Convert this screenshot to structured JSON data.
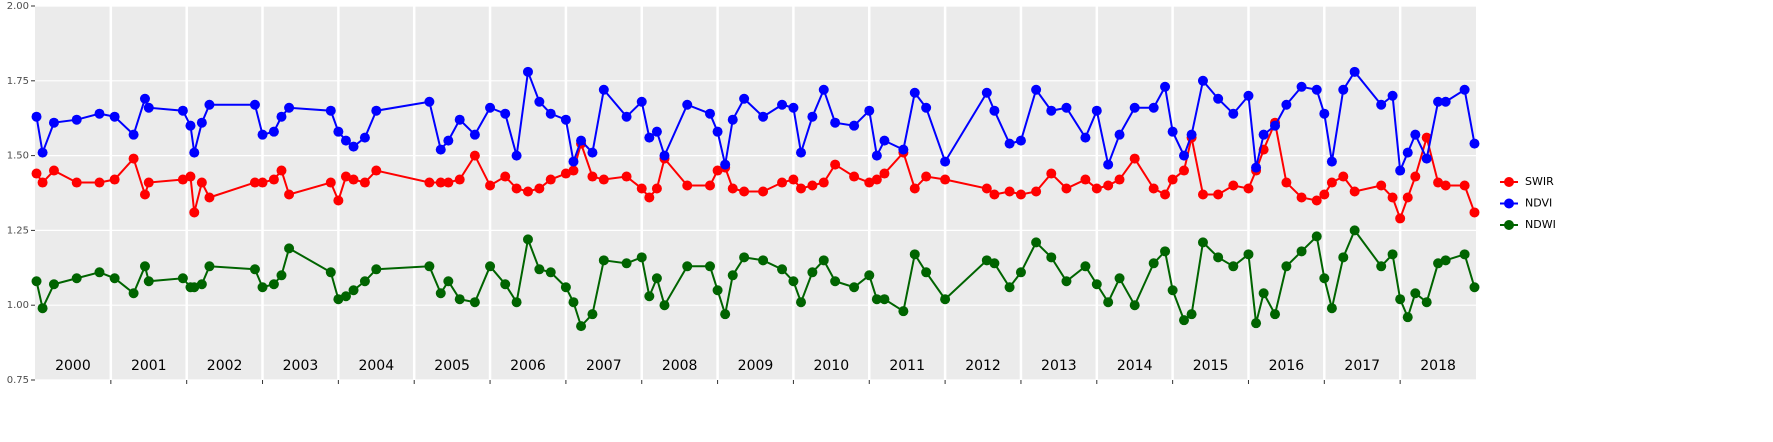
{
  "chart_data": {
    "type": "line",
    "categories": [
      "2000",
      "2001",
      "2002",
      "2003",
      "2004",
      "2005",
      "2006",
      "2007",
      "2008",
      "2009",
      "2010",
      "2011",
      "2012",
      "2013",
      "2014",
      "2015",
      "2016",
      "2017",
      "2018"
    ],
    "x": [
      2000.02,
      2000.1,
      2000.25,
      2000.55,
      2000.85,
      2001.05,
      2001.3,
      2001.45,
      2001.5,
      2001.95,
      2002.05,
      2002.1,
      2002.2,
      2002.3,
      2002.9,
      2003.0,
      2003.15,
      2003.25,
      2003.35,
      2003.9,
      2004.0,
      2004.1,
      2004.2,
      2004.35,
      2004.5,
      2005.2,
      2005.35,
      2005.45,
      2005.6,
      2005.8,
      2006.0,
      2006.2,
      2006.35,
      2006.5,
      2006.65,
      2006.8,
      2007.0,
      2007.1,
      2007.2,
      2007.35,
      2007.5,
      2007.8,
      2008.0,
      2008.1,
      2008.2,
      2008.3,
      2008.6,
      2008.9,
      2009.0,
      2009.1,
      2009.2,
      2009.35,
      2009.6,
      2009.85,
      2010.0,
      2010.1,
      2010.25,
      2010.4,
      2010.55,
      2010.8,
      2011.0,
      2011.1,
      2011.2,
      2011.45,
      2011.6,
      2011.75,
      2012.0,
      2012.55,
      2012.65,
      2012.85,
      2013.0,
      2013.2,
      2013.4,
      2013.6,
      2013.85,
      2014.0,
      2014.15,
      2014.3,
      2014.5,
      2014.75,
      2014.9,
      2015.0,
      2015.15,
      2015.25,
      2015.4,
      2015.6,
      2015.8,
      2016.0,
      2016.1,
      2016.2,
      2016.35,
      2016.5,
      2016.7,
      2016.9,
      2017.0,
      2017.1,
      2017.25,
      2017.4,
      2017.75,
      2017.9,
      2018.0,
      2018.1,
      2018.2,
      2018.35,
      2018.5,
      2018.6,
      2018.85,
      2018.98
    ],
    "series": [
      {
        "name": "SWIR",
        "color": "#ff0000",
        "values": [
          1.44,
          1.41,
          1.45,
          1.41,
          1.41,
          1.42,
          1.49,
          1.37,
          1.41,
          1.42,
          1.43,
          1.31,
          1.41,
          1.36,
          1.41,
          1.41,
          1.42,
          1.45,
          1.37,
          1.41,
          1.35,
          1.43,
          1.42,
          1.41,
          1.45,
          1.41,
          1.41,
          1.41,
          1.42,
          1.5,
          1.4,
          1.43,
          1.39,
          1.38,
          1.39,
          1.42,
          1.44,
          1.45,
          1.54,
          1.43,
          1.42,
          1.43,
          1.39,
          1.36,
          1.39,
          1.49,
          1.4,
          1.4,
          1.45,
          1.46,
          1.39,
          1.38,
          1.38,
          1.41,
          1.42,
          1.39,
          1.4,
          1.41,
          1.47,
          1.43,
          1.41,
          1.42,
          1.44,
          1.51,
          1.39,
          1.43,
          1.42,
          1.39,
          1.37,
          1.38,
          1.37,
          1.38,
          1.44,
          1.39,
          1.42,
          1.39,
          1.4,
          1.42,
          1.49,
          1.39,
          1.37,
          1.42,
          1.45,
          1.56,
          1.37,
          1.37,
          1.4,
          1.39,
          1.45,
          1.52,
          1.61,
          1.41,
          1.36,
          1.35,
          1.37,
          1.41,
          1.43,
          1.38,
          1.4,
          1.36,
          1.29,
          1.36,
          1.43,
          1.56,
          1.41,
          1.4,
          1.4,
          1.31
        ]
      },
      {
        "name": "NDVI",
        "color": "#0000ff",
        "values": [
          1.63,
          1.51,
          1.61,
          1.62,
          1.64,
          1.63,
          1.57,
          1.69,
          1.66,
          1.65,
          1.6,
          1.51,
          1.61,
          1.67,
          1.67,
          1.57,
          1.58,
          1.63,
          1.66,
          1.65,
          1.58,
          1.55,
          1.53,
          1.56,
          1.65,
          1.68,
          1.52,
          1.55,
          1.62,
          1.57,
          1.66,
          1.64,
          1.5,
          1.78,
          1.68,
          1.64,
          1.62,
          1.48,
          1.55,
          1.51,
          1.72,
          1.63,
          1.68,
          1.56,
          1.58,
          1.5,
          1.67,
          1.64,
          1.58,
          1.47,
          1.62,
          1.69,
          1.63,
          1.67,
          1.66,
          1.51,
          1.63,
          1.72,
          1.61,
          1.6,
          1.65,
          1.5,
          1.55,
          1.52,
          1.71,
          1.66,
          1.48,
          1.71,
          1.65,
          1.54,
          1.55,
          1.72,
          1.65,
          1.66,
          1.56,
          1.65,
          1.47,
          1.57,
          1.66,
          1.66,
          1.73,
          1.58,
          1.5,
          1.57,
          1.75,
          1.69,
          1.64,
          1.7,
          1.46,
          1.57,
          1.6,
          1.67,
          1.73,
          1.72,
          1.64,
          1.48,
          1.72,
          1.78,
          1.67,
          1.7,
          1.45,
          1.51,
          1.57,
          1.49,
          1.68,
          1.68,
          1.72,
          1.54
        ]
      },
      {
        "name": "NDWI",
        "color": "#006400",
        "values": [
          1.08,
          0.99,
          1.07,
          1.09,
          1.11,
          1.09,
          1.04,
          1.13,
          1.08,
          1.09,
          1.06,
          1.06,
          1.07,
          1.13,
          1.12,
          1.06,
          1.07,
          1.1,
          1.19,
          1.11,
          1.02,
          1.03,
          1.05,
          1.08,
          1.12,
          1.13,
          1.04,
          1.08,
          1.02,
          1.01,
          1.13,
          1.07,
          1.01,
          1.22,
          1.12,
          1.11,
          1.06,
          1.01,
          0.93,
          0.97,
          1.15,
          1.14,
          1.16,
          1.03,
          1.09,
          1.0,
          1.13,
          1.13,
          1.05,
          0.97,
          1.1,
          1.16,
          1.15,
          1.12,
          1.08,
          1.01,
          1.11,
          1.15,
          1.08,
          1.06,
          1.1,
          1.02,
          1.02,
          0.98,
          1.17,
          1.11,
          1.02,
          1.15,
          1.14,
          1.06,
          1.11,
          1.21,
          1.16,
          1.08,
          1.13,
          1.07,
          1.01,
          1.09,
          1.0,
          1.14,
          1.18,
          1.05,
          0.95,
          0.97,
          1.21,
          1.16,
          1.13,
          1.17,
          0.94,
          1.04,
          0.97,
          1.13,
          1.18,
          1.23,
          1.09,
          0.99,
          1.16,
          1.25,
          1.13,
          1.17,
          1.02,
          0.96,
          1.04,
          1.01,
          1.14,
          1.15,
          1.17,
          1.06
        ]
      }
    ],
    "xlim": [
      2000,
      2019
    ],
    "xticks": [
      2001,
      2002,
      2003,
      2004,
      2005,
      2006,
      2007,
      2008,
      2009,
      2010,
      2011,
      2012,
      2013,
      2014,
      2015,
      2016,
      2017,
      2018
    ],
    "ylim": [
      0.75,
      2.0
    ],
    "yticks": [
      {
        "value": 0.75,
        "label": "0.75"
      },
      {
        "value": 1.0,
        "label": "1.00"
      },
      {
        "value": 1.25,
        "label": "1.25"
      },
      {
        "value": 1.5,
        "label": "1.50"
      },
      {
        "value": 1.75,
        "label": "1.75"
      },
      {
        "value": 2.0,
        "label": "2.00"
      }
    ],
    "grid": true,
    "legend": "right"
  }
}
